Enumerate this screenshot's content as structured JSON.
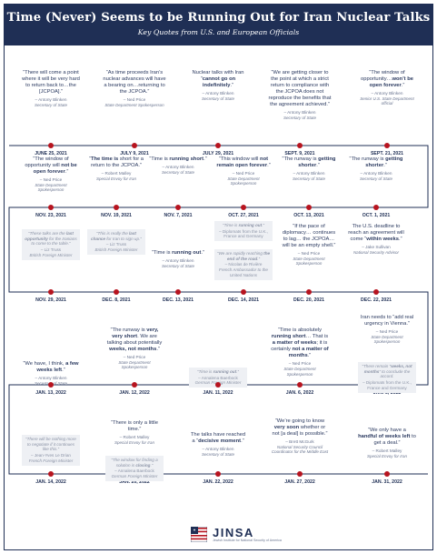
{
  "title": "Time (Never) Seems to be Running Out for Iran Nuclear Talks",
  "subtitle": "Key Quotes from U.S. and European Officials",
  "colors": {
    "navy": "#1f2f55",
    "accent_red": "#b7141f",
    "box_gray": "#eef0f4"
  },
  "rows": [
    {
      "items": [
        {
          "date": "JUNE 25, 2021",
          "pre": "“There will come a point where it will be very hard to return back to…the [JCPOA].”",
          "bold": "",
          "post": "",
          "speaker": "– Antony Blinken",
          "role": "Secretary of State",
          "boxed": false
        },
        {
          "date": "JULY 9, 2021",
          "pre": "“As time proceeds Iran’s nuclear advances will have a bearing on…returning to the JCPOA.”",
          "bold": "",
          "post": "",
          "speaker": "– Ned Price",
          "role": "State Department Spokesperson",
          "boxed": false
        },
        {
          "date": "JULY 29, 2021",
          "pre": "Nuclear talks with Iran “",
          "bold": "cannot go on indefinitely",
          "post": ".”",
          "speaker": "– Antony Blinken",
          "role": "Secretary of State",
          "boxed": false
        },
        {
          "date": "SEPT. 9, 2021",
          "pre": "“We are getting closer to the point at which a strict return to compliance with the JCPOA does not reproduce the benefits that the agreement achieved.”",
          "bold": "",
          "post": "",
          "speaker": "– Antony Blinken",
          "role": "Secretary of State",
          "boxed": false
        },
        {
          "date": "SEPT. 21, 2021",
          "pre": "“The window of opportunity…",
          "bold": "won’t be open forever",
          "post": ".”",
          "speaker": "– Antony Blinken",
          "role": "Senior U.S. State Department official",
          "boxed": false
        }
      ]
    },
    {
      "items": [
        {
          "date": "NOV. 23, 2021",
          "pre": "“The window of opportunity will ",
          "bold": "not be open forever",
          "post": ".”",
          "speaker": "– Ned Price",
          "role": "State Department Spokesperson",
          "boxed": false
        },
        {
          "date": "NOV. 19, 2021",
          "pre": "“",
          "bold": "The time is",
          "post": " short for a return to the JCPOA.”",
          "speaker": "– Robert Malley",
          "role": "Special Envoy for Iran",
          "boxed": false
        },
        {
          "date": "NOV. 7, 2021",
          "pre": "“Time is ",
          "bold": "running short",
          "post": ".”",
          "speaker": "– Antony Blinken",
          "role": "Secretary of State",
          "boxed": false
        },
        {
          "date": "OCT. 27, 2021",
          "pre": "“This window will ",
          "bold": "not remain open forever",
          "post": ".”",
          "speaker": "– Ned Price",
          "role": "State Department Spokesperson",
          "boxed": false
        },
        {
          "date": "OCT. 13, 2021",
          "pre": "“The runway is ",
          "bold": "getting shorter",
          "post": ".”",
          "speaker": "– Antony Blinken",
          "role": "Secretary of State",
          "boxed": false
        },
        {
          "date": "OCT. 1, 2021",
          "pre": "“The runway is ",
          "bold": "getting shorter",
          "post": ".”",
          "speaker": "– Antony Blinken",
          "role": "Secretary of State",
          "boxed": false
        }
      ]
    },
    {
      "items": [
        {
          "date": "NOV. 29, 2021",
          "pre": "“These talks are the ",
          "bold": "last opportunity",
          "post": " for the Iranians to come to the table.”",
          "speaker": "– Liz Truss",
          "role": "British Foreign Minister",
          "boxed": true
        },
        {
          "date": "DEC. 8, 2021",
          "pre": "“This is really the ",
          "bold": "last chance",
          "post": " for Iran to sign up.”",
          "speaker": "– Liz Truss",
          "role": "British Foreign Minister",
          "boxed": true
        },
        {
          "date": "DEC. 13, 2021",
          "pre": "“Time is ",
          "bold": "running out",
          "post": ".”",
          "speaker": "– Antony Blinken",
          "role": "Secretary of State",
          "boxed": false
        },
        {
          "date": "DEC. 14, 2021",
          "pre": "",
          "bold": "",
          "post": "",
          "speaker": "",
          "role": "",
          "boxed": false
        },
        {
          "date": "DEC. 20, 2021",
          "pre": "“If the pace of diplomacy… continues to lag… the JCPOA… will be an empty shell.”",
          "bold": "",
          "post": "",
          "speaker": "– Ned Price",
          "role": "State Department Spokesperson",
          "boxed": false
        },
        {
          "date": "DEC. 22, 2021",
          "pre": "The U.S. deadline to reach an agreement will come “",
          "bold": "within weeks",
          "post": ".”",
          "speaker": "– Jake Sullivan",
          "role": "National Security Advisor",
          "boxed": false
        }
      ]
    },
    {
      "items": [
        {
          "date": "JAN. 13, 2022",
          "pre": "“We have, I think, ",
          "bold": "a few weeks left",
          "post": ".”",
          "speaker": "– Antony Blinken",
          "role": "Secretary of State",
          "boxed": false
        },
        {
          "date": "JAN. 12, 2022",
          "pre": "“The runway is ",
          "bold": "very, very short",
          "post": ". We are talking about potentially ",
          "bold2": "weeks, not months",
          "post2": ".”",
          "speaker": "– Ned Price",
          "role": "State Department Spokesperson",
          "boxed": false
        },
        {
          "date": "JAN. 11, 2022",
          "pre": "“Time is ",
          "bold": "running out",
          "post": ".”",
          "speaker": "– Annalena Baerbock",
          "role": "German Foreign Minister",
          "boxed": true
        },
        {
          "date": "JAN. 6, 2022",
          "pre": "“Time is absolutely ",
          "bold": "running short",
          "post": "… That is ",
          "bold2": "a matter of weeks",
          "post2": "; it is certainly ",
          "bold3": "not a matter of months",
          "post3": ".”",
          "speaker": "– Ned Price",
          "role": "State Department Spokesperson",
          "boxed": false
        },
        {
          "date": "JAN. 3, 2022",
          "pre": "Iran needs to “add real urgency in Vienna.”",
          "bold": "",
          "post": "",
          "speaker": "– Ned Price",
          "role": "State Department Spokesperson",
          "boxed": false
        }
      ]
    },
    {
      "items": [
        {
          "date": "JAN. 14, 2022",
          "pre": "“There will be nothing more to negotiate if it continues like this.”",
          "bold": "",
          "post": "",
          "speaker": "– Jean-Yves Le Drian",
          "role": "French Foreign Minister",
          "boxed": true
        },
        {
          "date": "JAN. 20, 2022",
          "pre": "“There is only a little time",
          "bold": "",
          "post": ".”",
          "speaker": "– Robert Malley",
          "role": "Special Envoy for Iran",
          "boxed": false
        },
        {
          "date": "JAN. 22, 2022",
          "pre": "The talks have reached a “",
          "bold": "decisive moment",
          "post": ".”",
          "speaker": "– Antony Blinken",
          "role": "Secretary of State",
          "boxed": false
        },
        {
          "date": "JAN. 27, 2022",
          "pre": "“We’re going to know ",
          "bold": "very soon",
          "post": " whether or not [a deal] is possible.”",
          "speaker": "– Brett McGurk",
          "role": "National Security Council Coordinator for the Middle East",
          "boxed": false
        },
        {
          "date": "JAN. 31, 2022",
          "pre": "“We only have a ",
          "bold": "handful of weeks left",
          "post": " to get a deal.”",
          "speaker": "– Robert Malley",
          "role": "Special Envoy for Iran",
          "boxed": false
        }
      ]
    }
  ],
  "extra_boxes": {
    "dec14_a": {
      "pre": "“Time is ",
      "bold": "running out",
      "post": ".”",
      "speaker": "– Diplomats from the U.K., France and Germany"
    },
    "dec14_b": {
      "pre": "“We are rapidly reaching ",
      "bold": "the end of the road",
      "post": ".”",
      "speaker": "– Nicolas de Rivière",
      "role": "French Ambassador to the United Nations"
    },
    "jan6_b": {
      "pre": "“There remain “",
      "bold": "weeks, not months",
      "post": "” to conclude the accord.",
      "speaker": "– Diplomats from the U.K., France and Germany"
    },
    "jan20_b": {
      "pre": "“The window for finding a solution is ",
      "bold": "closing",
      "post": ".”",
      "speaker": "– Annalena Baerbock",
      "role": "German Foreign Minister"
    }
  },
  "logo": {
    "name": "JINSA",
    "tagline": "Jewish Institute for National Security of America"
  }
}
